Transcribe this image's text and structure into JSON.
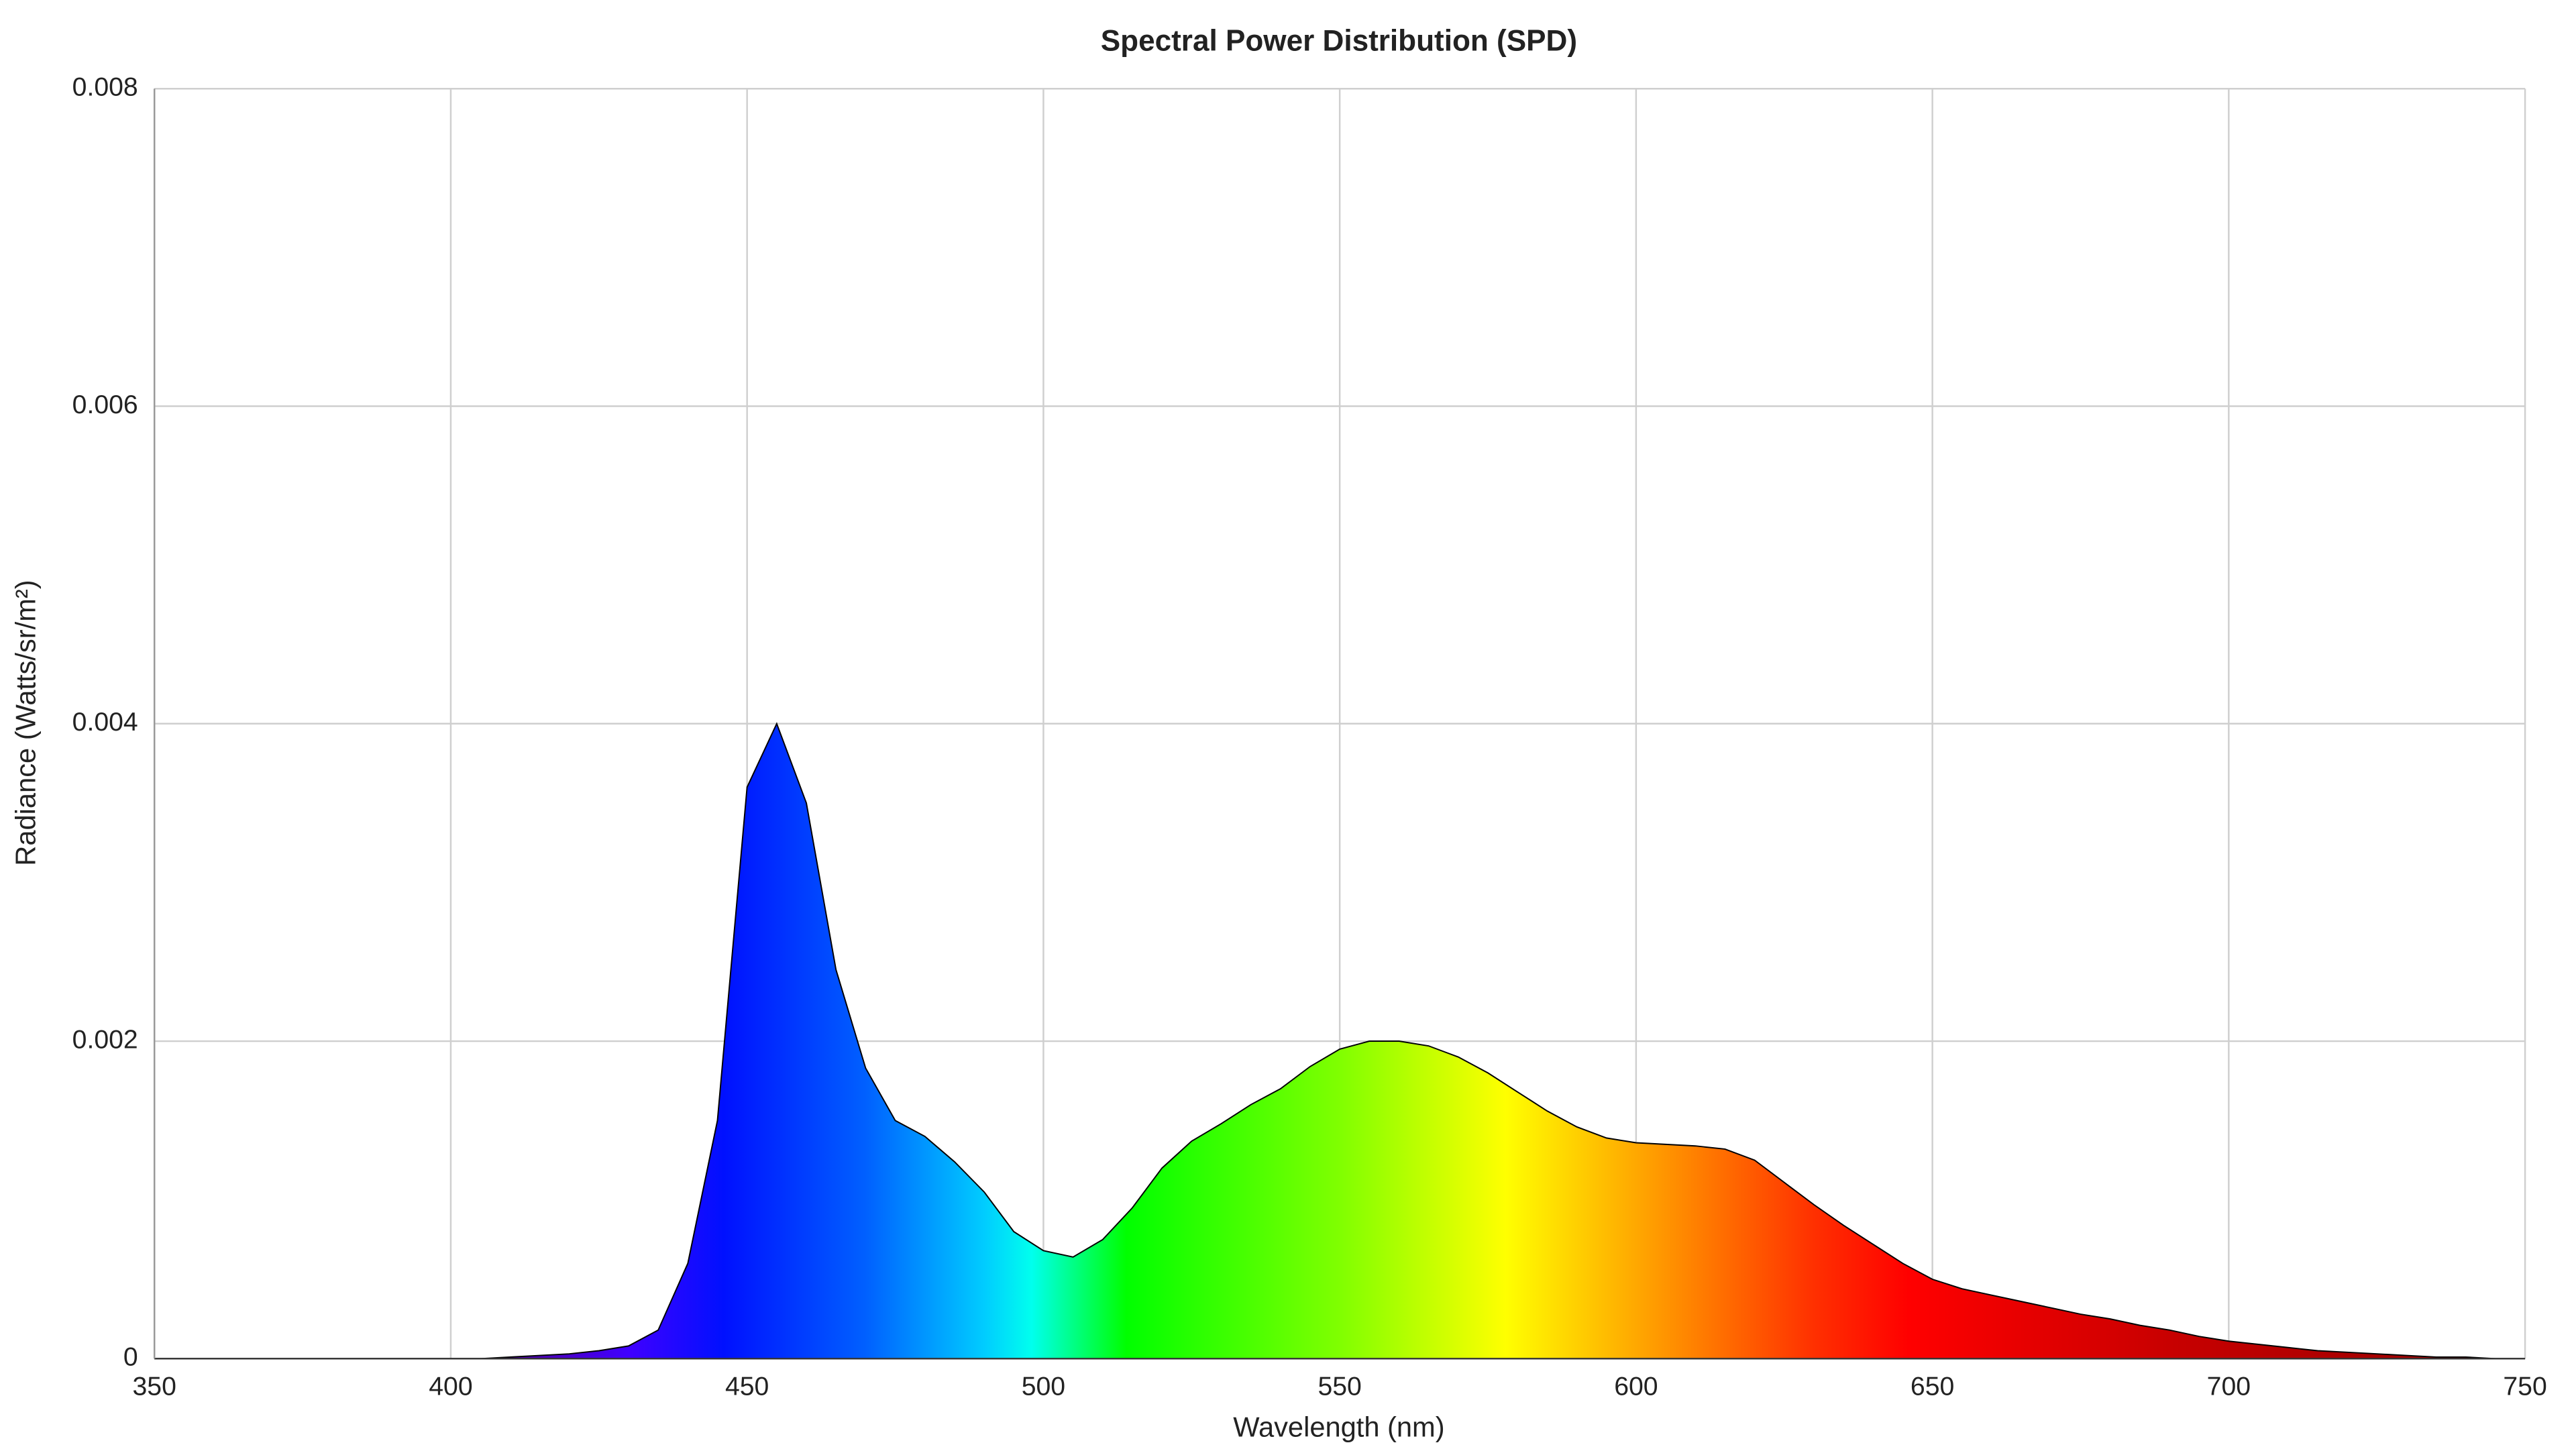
{
  "chart_data": {
    "type": "area",
    "title": "Spectral Power Distribution (SPD)",
    "x_label": "Wavelength (nm)",
    "y_label": "Radiance (Watts/sr/m²)",
    "x": [
      350,
      355,
      360,
      365,
      370,
      375,
      380,
      385,
      390,
      395,
      400,
      405,
      410,
      415,
      420,
      425,
      430,
      435,
      440,
      445,
      450,
      455,
      460,
      465,
      470,
      475,
      480,
      485,
      490,
      495,
      500,
      505,
      510,
      515,
      520,
      525,
      530,
      535,
      540,
      545,
      550,
      555,
      560,
      565,
      570,
      575,
      580,
      585,
      590,
      595,
      600,
      605,
      610,
      615,
      620,
      625,
      630,
      635,
      640,
      645,
      650,
      655,
      660,
      665,
      670,
      675,
      680,
      685,
      690,
      695,
      700,
      705,
      710,
      715,
      720,
      725,
      730,
      735,
      740,
      745,
      750
    ],
    "values": [
      0,
      0,
      0,
      0,
      0,
      0,
      0,
      0,
      0,
      0,
      0,
      0,
      1e-05,
      2e-05,
      3e-05,
      5e-05,
      8e-05,
      0.00018,
      0.0006,
      0.0015,
      0.0036,
      0.004,
      0.0035,
      0.00245,
      0.00183,
      0.0015,
      0.0014,
      0.00124,
      0.00105,
      0.0008,
      0.00068,
      0.00064,
      0.00075,
      0.00095,
      0.0012,
      0.00137,
      0.00148,
      0.0016,
      0.0017,
      0.00184,
      0.00195,
      0.002,
      0.002,
      0.00197,
      0.0019,
      0.0018,
      0.00168,
      0.00156,
      0.00146,
      0.00139,
      0.00136,
      0.00135,
      0.00134,
      0.00132,
      0.00125,
      0.00111,
      0.00097,
      0.00084,
      0.00072,
      0.0006,
      0.0005,
      0.00044,
      0.0004,
      0.00036,
      0.00032,
      0.00028,
      0.00025,
      0.00021,
      0.00018,
      0.00014,
      0.00011,
      9e-05,
      7e-05,
      5e-05,
      4e-05,
      3e-05,
      2e-05,
      1e-05,
      1e-05,
      0,
      0
    ],
    "line_color": "#000000",
    "xlim": [
      350,
      750
    ],
    "xticks": [
      350,
      400,
      450,
      500,
      550,
      600,
      650,
      700,
      750
    ],
    "ylim": [
      0,
      0.008
    ],
    "yticks": [
      0,
      0.002,
      0.004,
      0.006,
      0.008
    ],
    "grid": true
  }
}
